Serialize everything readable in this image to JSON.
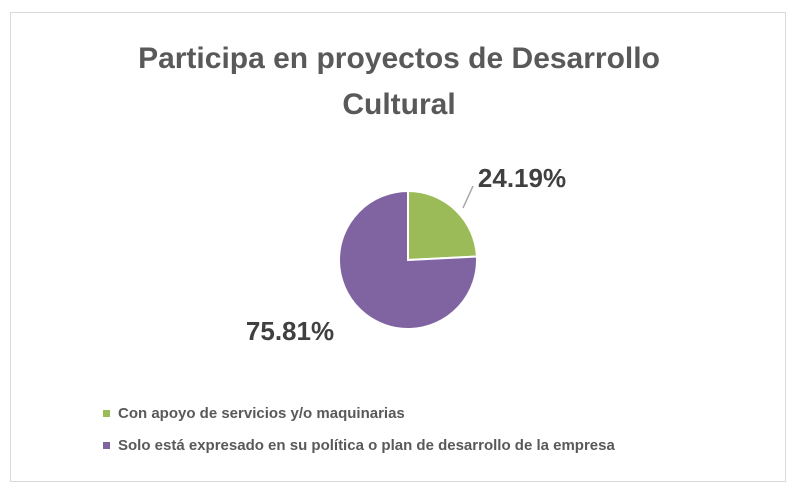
{
  "chart_data": {
    "type": "pie",
    "title": "Participa en proyectos de Desarrollo Cultural",
    "title_lines": [
      "Participa en proyectos de Desarrollo",
      "Cultural"
    ],
    "categories": [
      "Con apoyo de servicios y/o maquinarias",
      "Solo está expresado en su política o plan de desarrollo de la empresa"
    ],
    "values": [
      24.19,
      75.81
    ],
    "value_labels": [
      "24.19%",
      "75.81%"
    ],
    "colors": [
      "#9bbb59",
      "#8064a2"
    ],
    "legend_position": "bottom-left"
  }
}
